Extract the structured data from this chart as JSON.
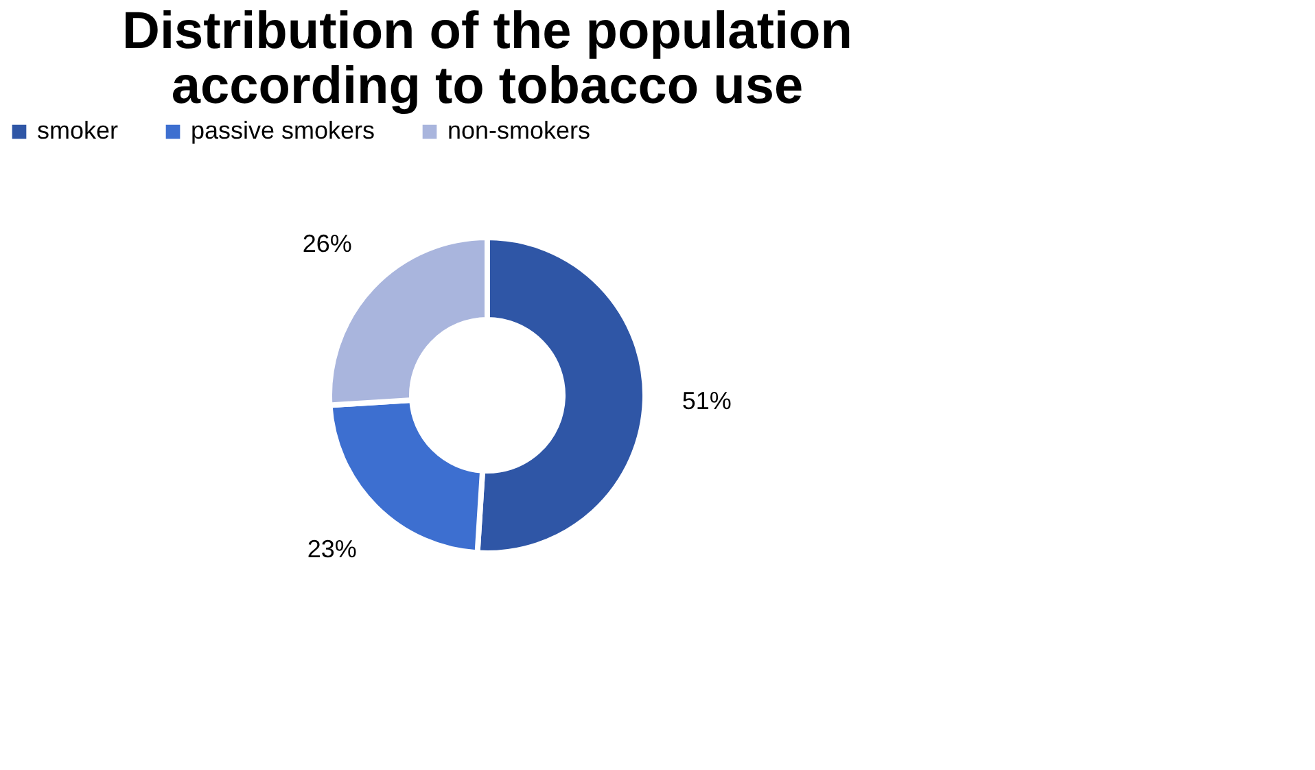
{
  "chart_data": {
    "type": "donut",
    "title": "Distribution of the population according to tobacco use",
    "categories": [
      "smoker",
      "passive smokers",
      "non-smokers"
    ],
    "values": [
      51,
      23,
      26
    ],
    "colors": [
      "#2f56a6",
      "#3d6fd0",
      "#a9b5dd"
    ],
    "value_labels": [
      "51%",
      "23%",
      "26%"
    ],
    "legend": "top"
  }
}
